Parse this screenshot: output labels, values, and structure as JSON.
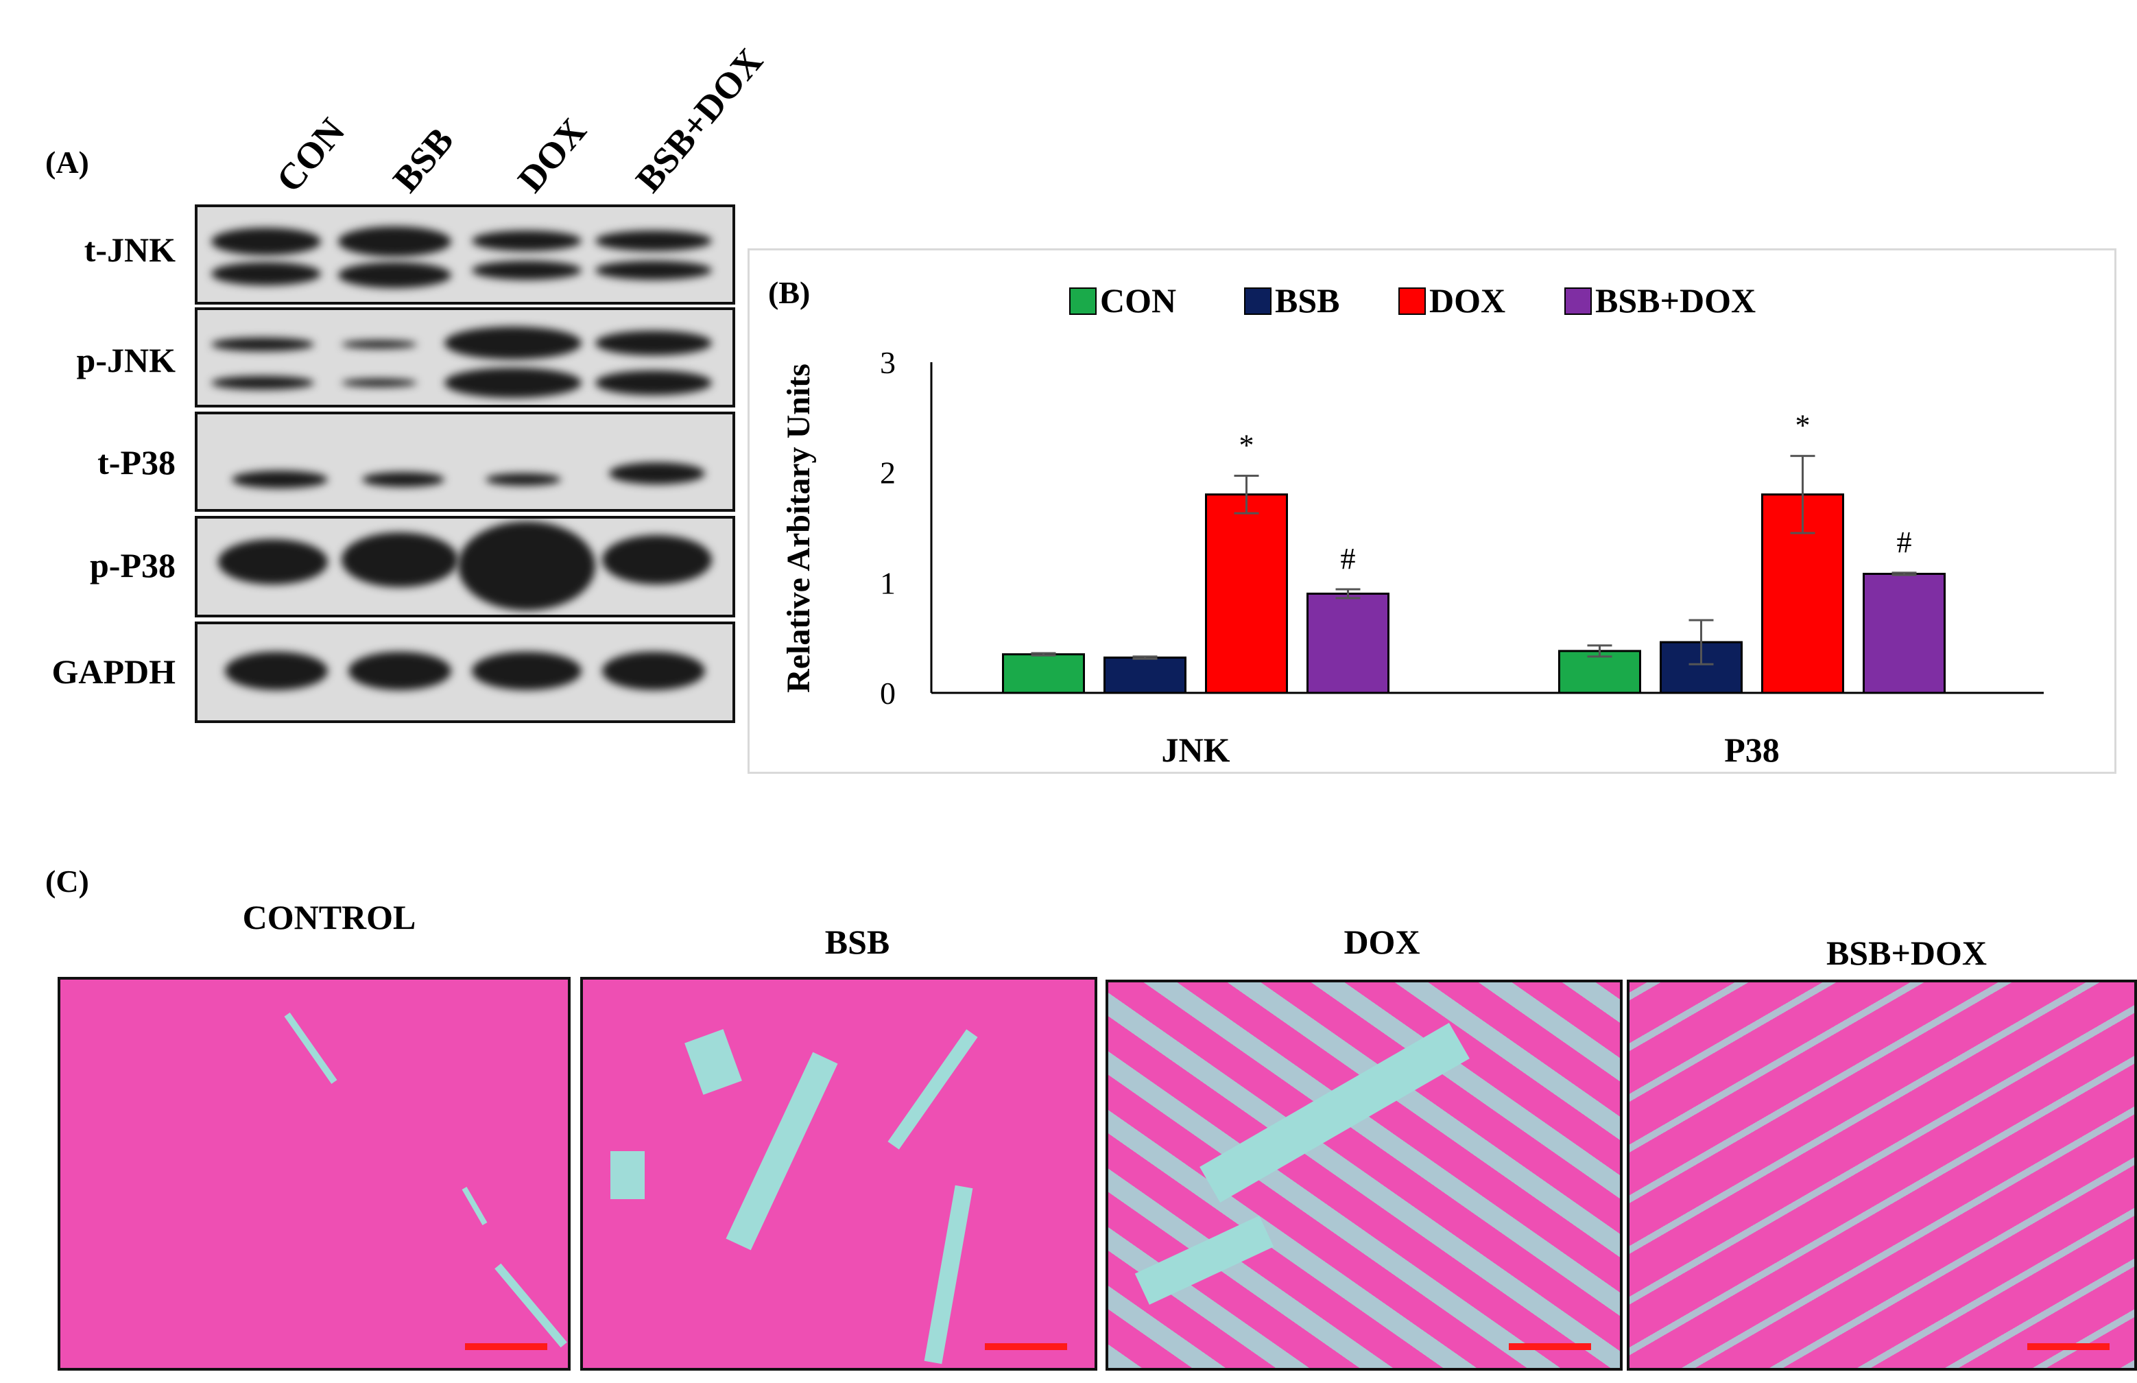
{
  "panels": {
    "a": "(A)",
    "b": "(B)",
    "c": "(C)"
  },
  "western_blot": {
    "lanes": [
      "CON",
      "BSB",
      "DOX",
      "BSB+DOX"
    ],
    "rows": [
      "t-JNK",
      "p-JNK",
      "t-P38",
      "p-P38",
      "GAPDH"
    ]
  },
  "chart_data": {
    "type": "bar",
    "categories": [
      "JNK",
      "P38"
    ],
    "series": [
      {
        "name": "CON",
        "color": "#1aaa4a",
        "values": [
          0.35,
          0.38
        ],
        "errors": [
          0.01,
          0.05
        ],
        "annotations": [
          "",
          ""
        ]
      },
      {
        "name": "BSB",
        "color": "#0c1f5c",
        "values": [
          0.32,
          0.46
        ],
        "errors": [
          0.01,
          0.2
        ],
        "annotations": [
          "",
          ""
        ]
      },
      {
        "name": "DOX",
        "color": "#ff0000",
        "values": [
          1.8,
          1.8
        ],
        "errors": [
          0.17,
          0.35
        ],
        "annotations": [
          "*",
          "*"
        ]
      },
      {
        "name": "BSB+DOX",
        "color": "#7f2ea3",
        "values": [
          0.9,
          1.08
        ],
        "errors": [
          0.04,
          0.01
        ],
        "annotations": [
          "#",
          "#"
        ]
      }
    ],
    "ylabel": "Relative Arbitary Units",
    "ylim": [
      0,
      3
    ],
    "yticks": [
      "0",
      "1",
      "2",
      "3"
    ],
    "legend_position": "top"
  },
  "histology": {
    "titles": [
      "CONTROL",
      "BSB",
      "DOX",
      "BSB+DOX"
    ]
  }
}
